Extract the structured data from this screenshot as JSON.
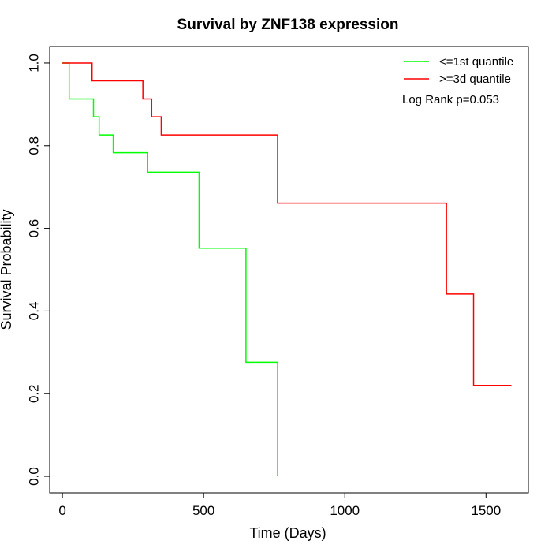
{
  "chart_data": {
    "type": "line",
    "step": true,
    "title": "Survival by ZNF138 expression",
    "xlabel": "Time (Days)",
    "ylabel": "Survival Probability",
    "xlim": [
      -45,
      1650
    ],
    "ylim": [
      -0.04,
      1.04
    ],
    "xticks": [
      0,
      500,
      1000,
      1500
    ],
    "xtick_labels": [
      "0",
      "500",
      "1000",
      "1500"
    ],
    "yticks": [
      0.0,
      0.2,
      0.4,
      0.6,
      0.8,
      1.0
    ],
    "ytick_labels": [
      "0.0",
      "0.2",
      "0.4",
      "0.6",
      "0.8",
      "1.0"
    ],
    "grid": false,
    "legend_position": "top-right",
    "annotation": "Log Rank p=0.053",
    "series": [
      {
        "name": "<=1st quantile",
        "color": "#00ff00",
        "x": [
          0,
          24,
          24,
          110,
          130,
          180,
          302,
          484,
          650,
          762
        ],
        "y": [
          1.0,
          0.957,
          0.913,
          0.87,
          0.826,
          0.783,
          0.736,
          0.552,
          0.276,
          0.0
        ]
      },
      {
        "name": ">=3d quantile",
        "color": "#ff0000",
        "x": [
          0,
          105,
          285,
          316,
          350,
          762,
          1360,
          1456,
          1590
        ],
        "y": [
          1.0,
          0.957,
          0.913,
          0.87,
          0.826,
          0.661,
          0.441,
          0.22,
          0.22
        ]
      }
    ]
  }
}
